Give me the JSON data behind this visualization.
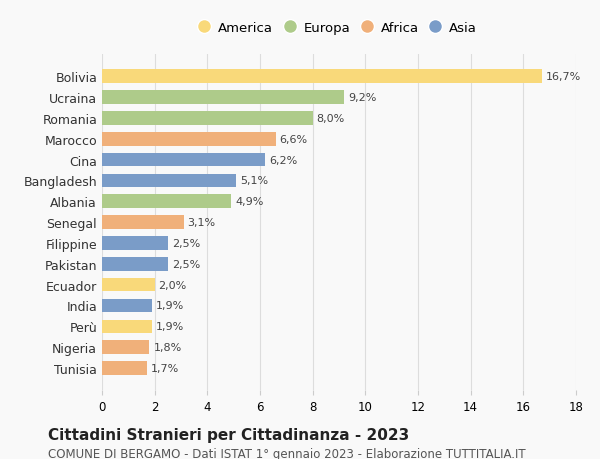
{
  "countries": [
    "Bolivia",
    "Ucraina",
    "Romania",
    "Marocco",
    "Cina",
    "Bangladesh",
    "Albania",
    "Senegal",
    "Filippine",
    "Pakistan",
    "Ecuador",
    "India",
    "Perù",
    "Nigeria",
    "Tunisia"
  ],
  "values": [
    16.7,
    9.2,
    8.0,
    6.6,
    6.2,
    5.1,
    4.9,
    3.1,
    2.5,
    2.5,
    2.0,
    1.9,
    1.9,
    1.8,
    1.7
  ],
  "labels": [
    "16,7%",
    "9,2%",
    "8,0%",
    "6,6%",
    "6,2%",
    "5,1%",
    "4,9%",
    "3,1%",
    "2,5%",
    "2,5%",
    "2,0%",
    "1,9%",
    "1,9%",
    "1,8%",
    "1,7%"
  ],
  "continents": [
    "America",
    "Europa",
    "Europa",
    "Africa",
    "Asia",
    "Asia",
    "Europa",
    "Africa",
    "Asia",
    "Asia",
    "America",
    "Asia",
    "America",
    "Africa",
    "Africa"
  ],
  "colors": {
    "America": "#F9D97A",
    "Europa": "#AECB8A",
    "Africa": "#F0B07A",
    "Asia": "#7A9CC8"
  },
  "legend_order": [
    "America",
    "Europa",
    "Africa",
    "Asia"
  ],
  "title": "Cittadini Stranieri per Cittadinanza - 2023",
  "subtitle": "COMUNE DI BERGAMO - Dati ISTAT 1° gennaio 2023 - Elaborazione TUTTITALIA.IT",
  "xlim": [
    0,
    18
  ],
  "xticks": [
    0,
    2,
    4,
    6,
    8,
    10,
    12,
    14,
    16,
    18
  ],
  "background_color": "#f9f9f9",
  "bar_height": 0.65,
  "label_fontsize": 8,
  "title_fontsize": 11,
  "subtitle_fontsize": 8.5
}
